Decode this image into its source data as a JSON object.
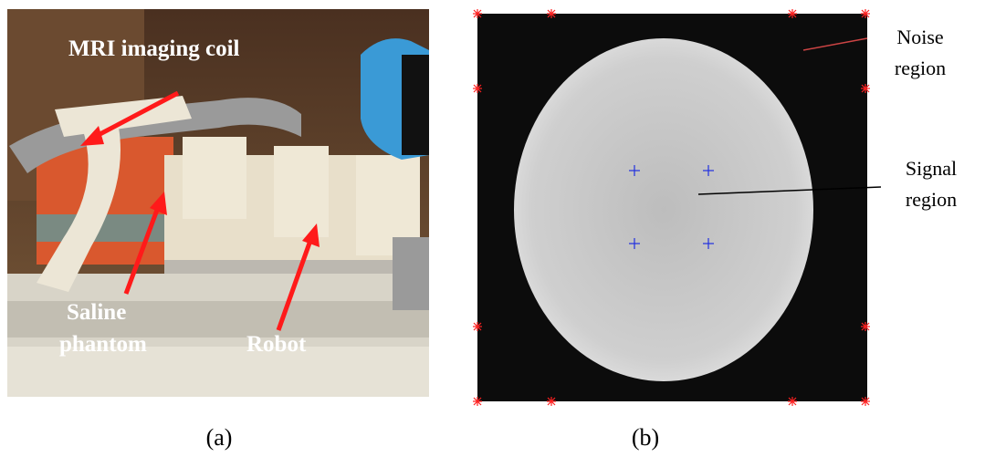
{
  "panel_a": {
    "labels": {
      "coil": "MRI imaging coil",
      "phantom": [
        "Saline",
        "phantom"
      ],
      "robot": "Robot"
    },
    "caption": "(a)"
  },
  "panel_b": {
    "labels": {
      "noise": [
        "Noise",
        "region"
      ],
      "signal": [
        "Signal",
        "region"
      ]
    },
    "caption": "(b)"
  }
}
